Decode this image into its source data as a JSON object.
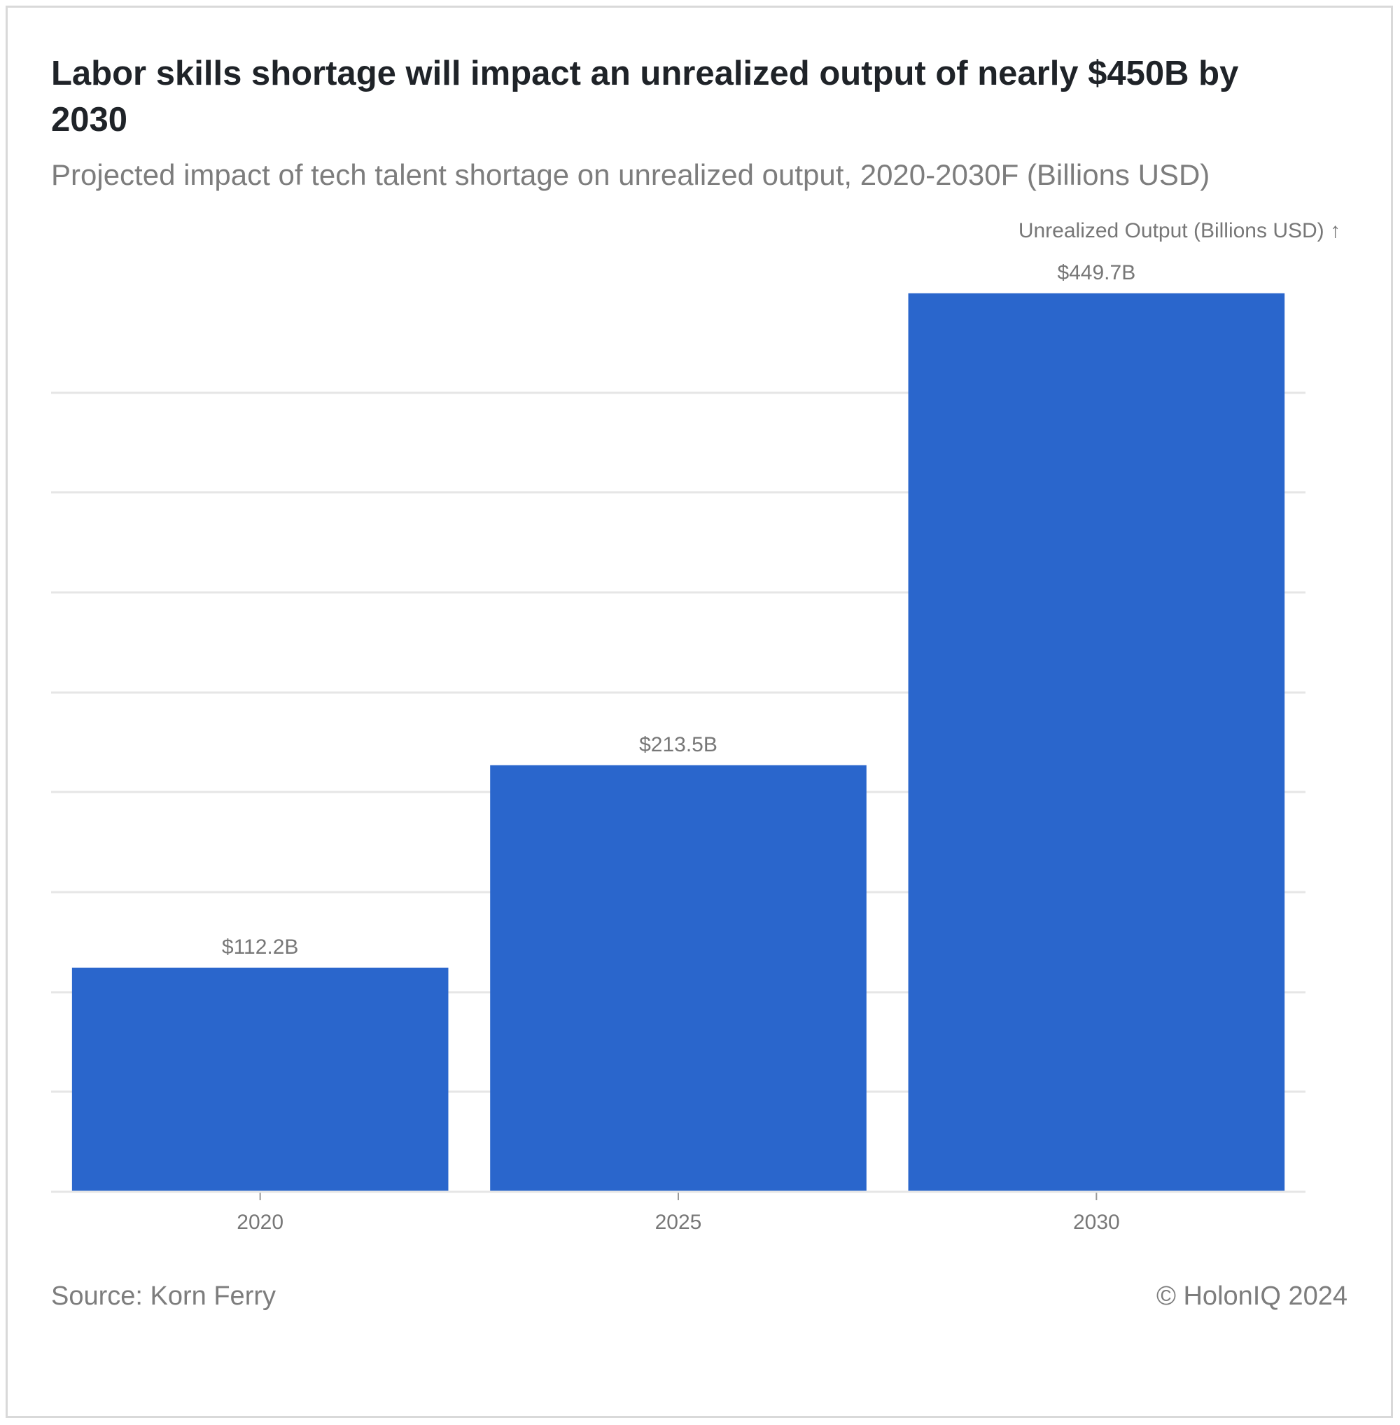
{
  "header": {
    "title": "Labor skills shortage will impact an unrealized output of nearly $450B by 2030",
    "subtitle": "Projected impact of tech talent shortage on unrealized output, 2020-2030F (Billions USD)"
  },
  "footer": {
    "source": "Source: Korn Ferry",
    "copyright": "© HolonIQ 2024"
  },
  "colors": {
    "bar": "#2a66cc",
    "grid": "#e6e6e6",
    "label_text": "#777777"
  },
  "chart_data": {
    "type": "bar",
    "categories": [
      "2020",
      "2025",
      "2030"
    ],
    "values": [
      112.2,
      213.5,
      449.7
    ],
    "value_labels": [
      "$112.2B",
      "$213.5B",
      "$449.7B"
    ],
    "ylabel": "Unrealized Output (Billions USD) ↑",
    "ylim": [
      0,
      450
    ],
    "grid": true,
    "y_tick_labels_shown": false
  }
}
